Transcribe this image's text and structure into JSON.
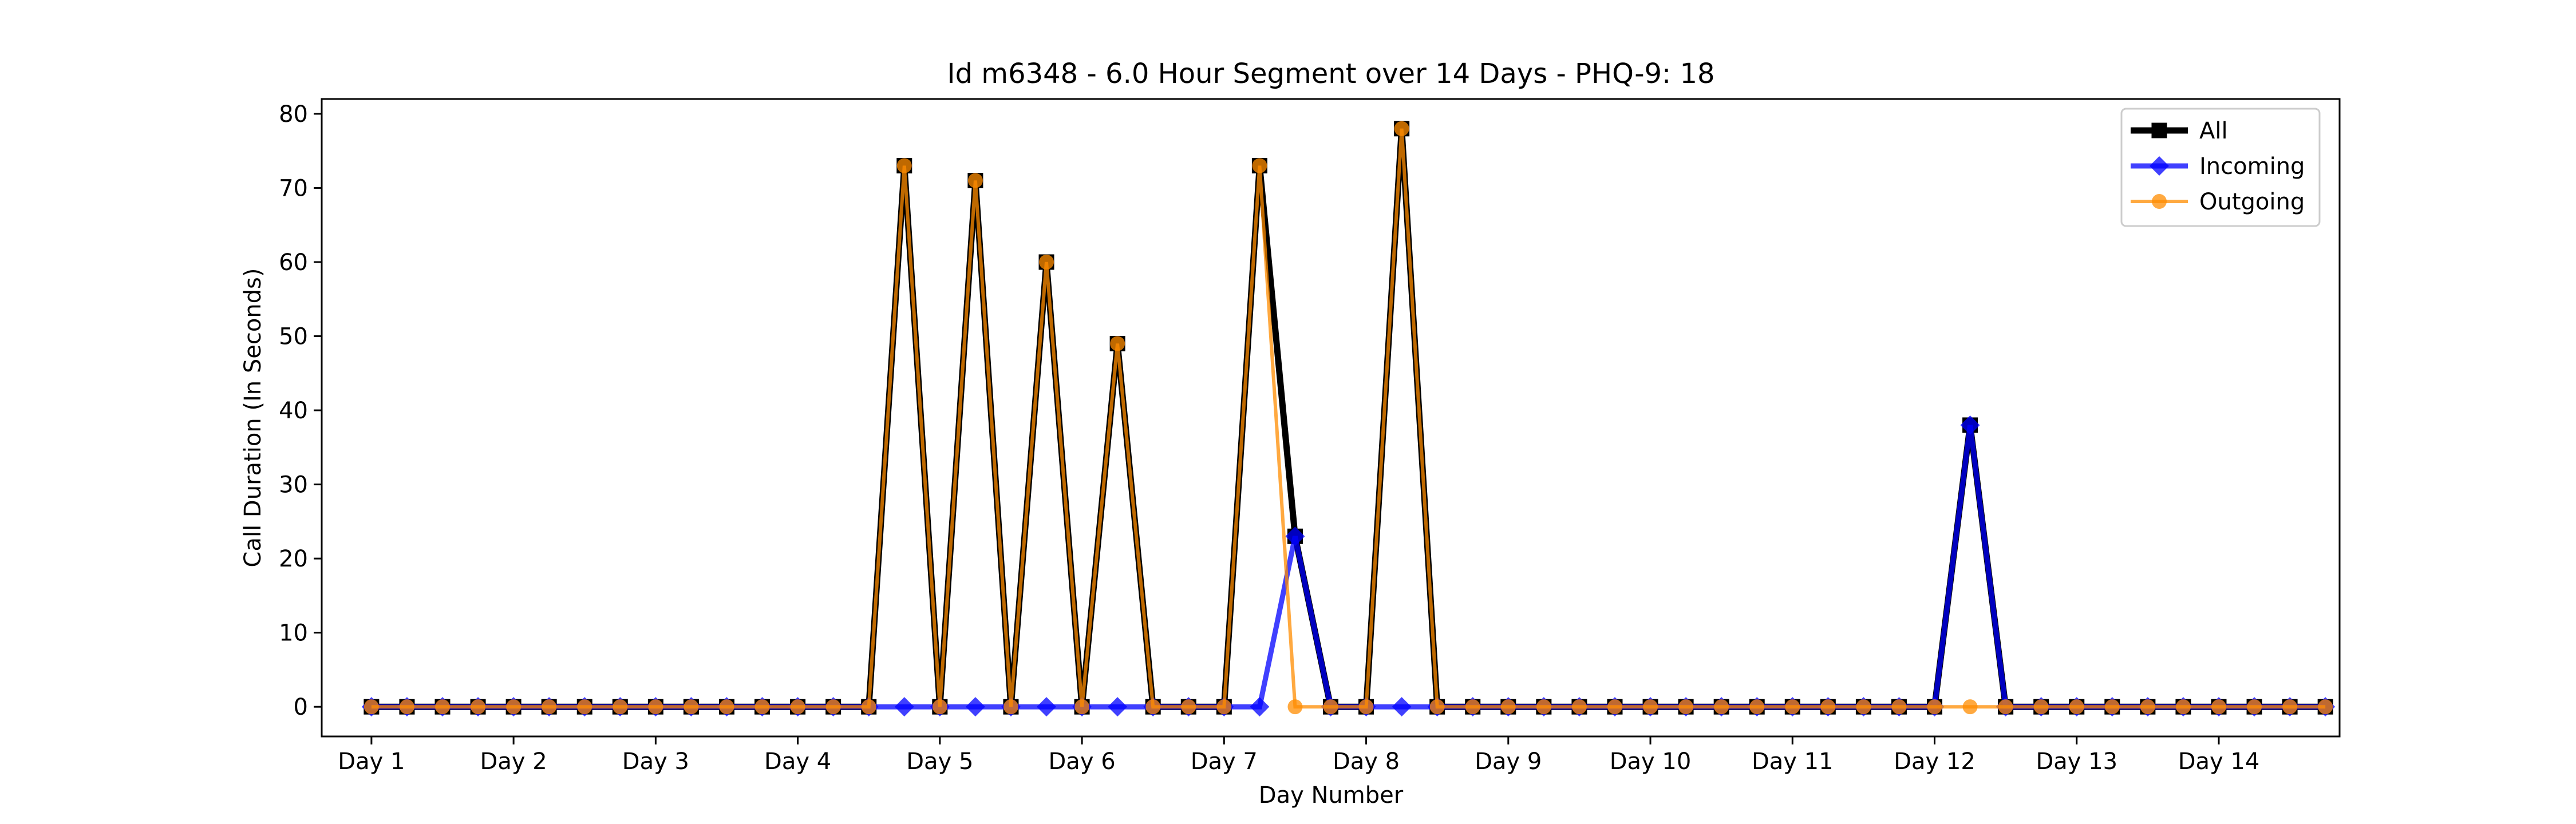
{
  "chart_data": {
    "type": "line",
    "title": "Id m6348 - 6.0 Hour Segment over 14 Days - PHQ-9: 18",
    "xlabel": "Day Number",
    "ylabel": "Call Duration (In Seconds)",
    "ylim": [
      -4,
      82
    ],
    "yticks": [
      0,
      10,
      20,
      30,
      40,
      50,
      60,
      70,
      80
    ],
    "xlim": [
      -1.4,
      55.4
    ],
    "xticks": [
      {
        "pos": 0,
        "label": "Day 1"
      },
      {
        "pos": 4,
        "label": "Day 2"
      },
      {
        "pos": 8,
        "label": "Day 3"
      },
      {
        "pos": 12,
        "label": "Day 4"
      },
      {
        "pos": 16,
        "label": "Day 5"
      },
      {
        "pos": 20,
        "label": "Day 6"
      },
      {
        "pos": 24,
        "label": "Day 7"
      },
      {
        "pos": 28,
        "label": "Day 8"
      },
      {
        "pos": 32,
        "label": "Day 9"
      },
      {
        "pos": 36,
        "label": "Day 10"
      },
      {
        "pos": 40,
        "label": "Day 11"
      },
      {
        "pos": 44,
        "label": "Day 12"
      },
      {
        "pos": 48,
        "label": "Day 13"
      },
      {
        "pos": 52,
        "label": "Day 14"
      }
    ],
    "legend_position": "top-right",
    "grid": false,
    "series": [
      {
        "name": "All",
        "color": "#000000",
        "marker": "square",
        "values": [
          0,
          0,
          0,
          0,
          0,
          0,
          0,
          0,
          0,
          0,
          0,
          0,
          0,
          0,
          0,
          73,
          0,
          71,
          0,
          60,
          0,
          49,
          0,
          0,
          0,
          73,
          23,
          0,
          0,
          78,
          0,
          0,
          0,
          0,
          0,
          0,
          0,
          0,
          0,
          0,
          0,
          0,
          0,
          0,
          0,
          38,
          0,
          0,
          0,
          0,
          0,
          0,
          0,
          0,
          0,
          0
        ]
      },
      {
        "name": "Incoming",
        "color": "#0000ff",
        "marker": "diamond",
        "values": [
          0,
          0,
          0,
          0,
          0,
          0,
          0,
          0,
          0,
          0,
          0,
          0,
          0,
          0,
          0,
          0,
          0,
          0,
          0,
          0,
          0,
          0,
          0,
          0,
          0,
          0,
          23,
          0,
          0,
          0,
          0,
          0,
          0,
          0,
          0,
          0,
          0,
          0,
          0,
          0,
          0,
          0,
          0,
          0,
          0,
          38,
          0,
          0,
          0,
          0,
          0,
          0,
          0,
          0,
          0,
          0
        ]
      },
      {
        "name": "Outgoing",
        "color": "#ff8c00",
        "marker": "circle",
        "values": [
          0,
          0,
          0,
          0,
          0,
          0,
          0,
          0,
          0,
          0,
          0,
          0,
          0,
          0,
          0,
          73,
          0,
          71,
          0,
          60,
          0,
          49,
          0,
          0,
          0,
          73,
          0,
          0,
          0,
          78,
          0,
          0,
          0,
          0,
          0,
          0,
          0,
          0,
          0,
          0,
          0,
          0,
          0,
          0,
          0,
          0,
          0,
          0,
          0,
          0,
          0,
          0,
          0,
          0,
          0,
          0
        ]
      }
    ]
  }
}
